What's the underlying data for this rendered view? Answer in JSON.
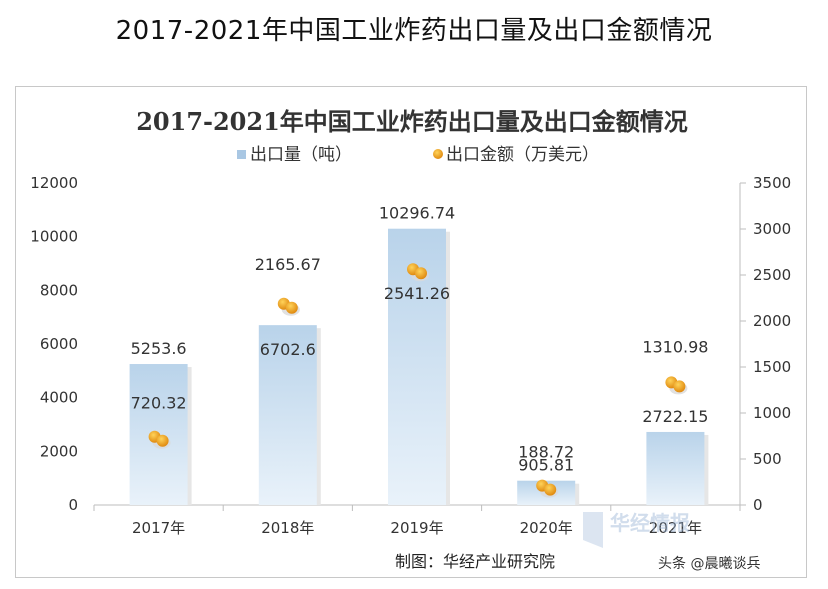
{
  "page_title": "2017-2021年中国工业炸药出口量及出口金额情况",
  "credit": "制图：华经产业研究院",
  "watermark_logo": "华经情报",
  "watermark_source": "头条 @晨曦谈兵",
  "chart_data": {
    "type": "bar",
    "title": "2017-2021年中国工业炸药出口量及出口金额情况",
    "categories": [
      "2017年",
      "2018年",
      "2019年",
      "2020年",
      "2021年"
    ],
    "series": [
      {
        "name": "出口量（吨）",
        "type": "bar",
        "axis": "left",
        "values": [
          5253.6,
          6702.6,
          10296.74,
          905.81,
          2722.15
        ],
        "labels": [
          "5253.6",
          "6702.6",
          "10296.74",
          "905.81",
          "2722.15"
        ],
        "color": "#c5dcef"
      },
      {
        "name": "出口金额（万美元）",
        "type": "scatter",
        "axis": "right",
        "values": [
          720.32,
          2165.67,
          2541.26,
          188.72,
          1310.98
        ],
        "labels": [
          "720.32",
          "2165.67",
          "2541.26",
          "188.72",
          "1310.98"
        ],
        "color": "#f0a020"
      }
    ],
    "y_left": {
      "min": 0,
      "max": 12000,
      "ticks": [
        "0",
        "2000",
        "4000",
        "6000",
        "8000",
        "10000",
        "12000"
      ]
    },
    "y_right": {
      "min": 0,
      "max": 3500,
      "ticks": [
        "0",
        "500",
        "1000",
        "1500",
        "2000",
        "2500",
        "3000",
        "3500"
      ]
    },
    "legend_position": "top-center",
    "grid": false
  }
}
